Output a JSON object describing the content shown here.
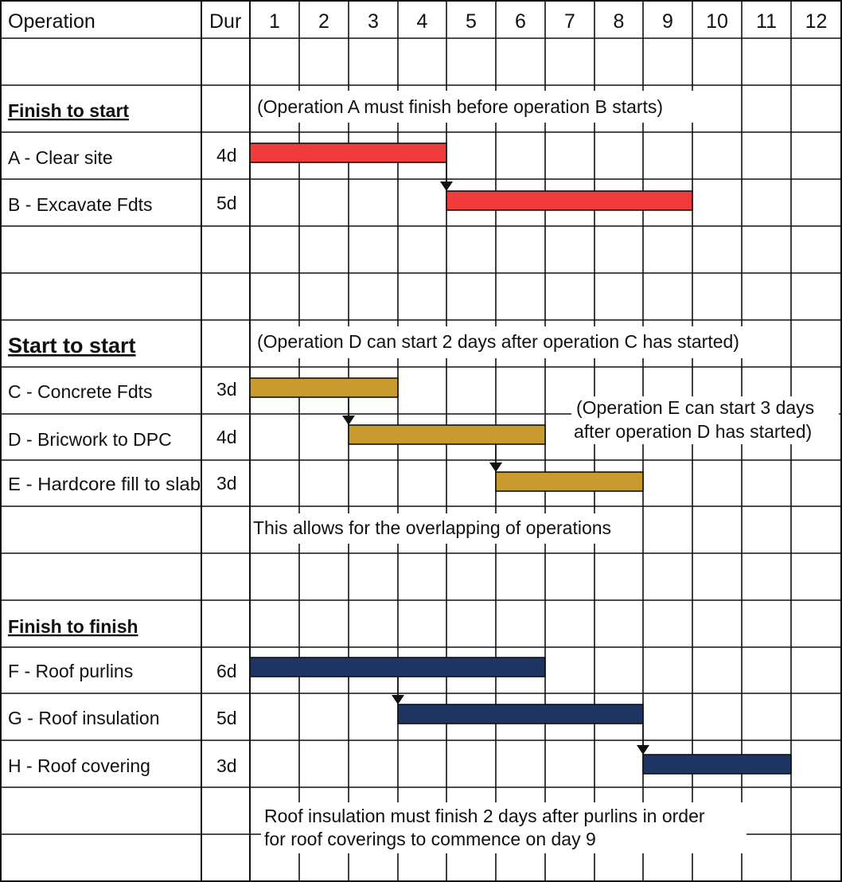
{
  "headers": {
    "operation": "Operation",
    "duration": "Dur",
    "days": [
      "1",
      "2",
      "3",
      "4",
      "5",
      "6",
      "7",
      "8",
      "9",
      "10",
      "11",
      "12"
    ]
  },
  "colors": {
    "finish_to_start": "#ef3b3b",
    "start_to_start": "#c99a2e",
    "finish_to_finish": "#1e3563",
    "grid": "#111111"
  },
  "sections": [
    {
      "title": "Finish to start",
      "note": "(Operation A must finish before operation B starts)"
    },
    {
      "title": "Start to start",
      "note": "(Operation D can start 2 days after operation C has started)"
    },
    {
      "title": "Finish to finish",
      "note": ""
    }
  ],
  "operations": [
    {
      "label": "A - Clear site",
      "duration": "4d",
      "start_day": 1,
      "days": 4,
      "group": "finish_to_start"
    },
    {
      "label": "B - Excavate Fdts",
      "duration": "5d",
      "start_day": 5,
      "days": 5,
      "group": "finish_to_start"
    },
    {
      "label": "C - Concrete Fdts",
      "duration": "3d",
      "start_day": 1,
      "days": 3,
      "group": "start_to_start"
    },
    {
      "label": "D - Bricwork to DPC",
      "duration": "4d",
      "start_day": 3,
      "days": 4,
      "group": "start_to_start"
    },
    {
      "label": "E - Hardcore fill to slab",
      "duration": "3d",
      "start_day": 6,
      "days": 3,
      "group": "start_to_start"
    },
    {
      "label": "F - Roof purlins",
      "duration": "6d",
      "start_day": 1,
      "days": 6,
      "group": "finish_to_finish"
    },
    {
      "label": "G - Roof insulation",
      "duration": "5d",
      "start_day": 4,
      "days": 5,
      "group": "finish_to_finish"
    },
    {
      "label": "H - Roof covering",
      "duration": "3d",
      "start_day": 9,
      "days": 3,
      "group": "finish_to_finish"
    }
  ],
  "dependencies": [
    {
      "from": "A",
      "to": "B",
      "at_day_boundary": 4
    },
    {
      "from": "C",
      "to": "D",
      "at_day_boundary": 2
    },
    {
      "from": "D",
      "to": "E",
      "at_day_boundary": 5
    },
    {
      "from": "F",
      "to": "G",
      "at_day_boundary": 3
    },
    {
      "from": "G",
      "to": "H",
      "at_day_boundary": 8
    }
  ],
  "notes": {
    "e_note_line1": "(Operation E can start 3 days",
    "e_note_line2": "after operation D has started)",
    "overlap": "This allows for the overlapping of operations",
    "ff_line1": "Roof insulation must finish 2 days after purlins in order",
    "ff_line2": "for roof coverings to commence on day 9"
  }
}
